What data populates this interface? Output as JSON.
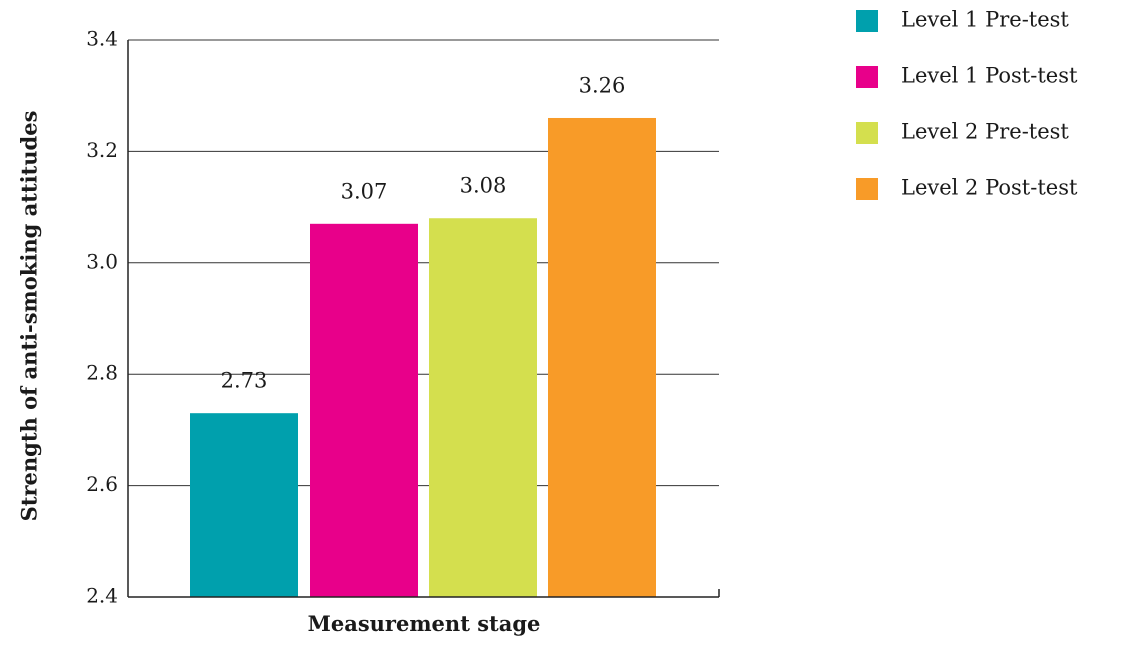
{
  "chart_data": {
    "type": "bar",
    "categories": [
      "Level 1 Pre-test",
      "Level 1 Post-test",
      "Level 2 Pre-test",
      "Level 2 Post-test"
    ],
    "values": [
      2.73,
      3.07,
      3.08,
      3.26
    ],
    "data_labels": [
      "2.73",
      "3.07",
      "3.08",
      "3.26"
    ],
    "colors": [
      "#00a0ad",
      "#e8008a",
      "#d4df4e",
      "#f89b28"
    ],
    "title": "",
    "xlabel": "Measurement stage",
    "ylabel": "Strength of anti-smoking attitudes",
    "ylim": [
      2.4,
      3.4
    ],
    "yticks": [
      "2.4",
      "2.6",
      "2.8",
      "3.0",
      "3.2",
      "3.4"
    ],
    "grid": true,
    "legend": {
      "position": "right",
      "entries": [
        "Level 1 Pre-test",
        "Level 1 Post-test",
        "Level 2 Pre-test",
        "Level 2 Post-test"
      ]
    }
  }
}
